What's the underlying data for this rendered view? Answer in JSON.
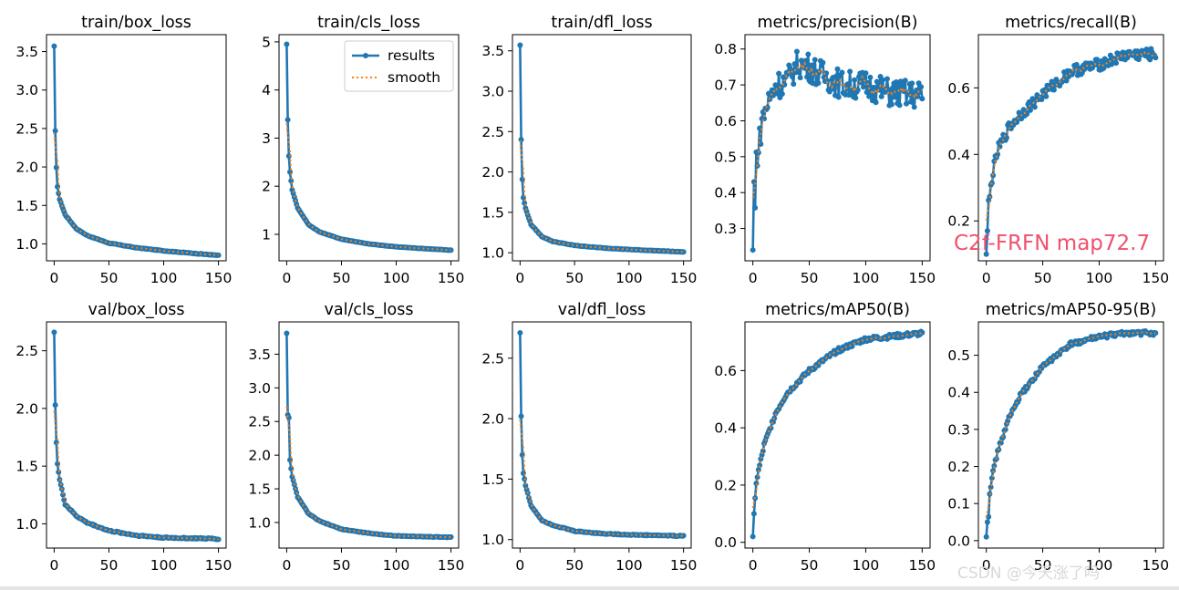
{
  "chart_data": [
    {
      "type": "line",
      "title": "train/box_loss",
      "xlim": [
        -7,
        157
      ],
      "ylim": [
        0.78,
        3.72
      ],
      "xticks": [
        "0",
        "50",
        "100",
        "150"
      ],
      "ytick_values": [
        1.0,
        1.5,
        2.0,
        2.5,
        3.0,
        3.5
      ],
      "ytick_labels": [
        "1.0",
        "1.5",
        "2.0",
        "2.5",
        "3.0",
        "3.5"
      ],
      "curve": {
        "start": 3.57,
        "second": 2.47,
        "kp": [
          [
            2,
            1.99
          ],
          [
            3,
            1.74
          ],
          [
            5,
            1.58
          ],
          [
            10,
            1.38
          ],
          [
            20,
            1.2
          ],
          [
            30,
            1.11
          ],
          [
            50,
            1.01
          ],
          [
            75,
            0.95
          ],
          [
            100,
            0.91
          ],
          [
            150,
            0.85
          ]
        ],
        "noise": 0.004
      },
      "series": [
        {
          "name": "results"
        },
        {
          "name": "smooth"
        }
      ]
    },
    {
      "type": "line",
      "title": "train/cls_loss",
      "xlim": [
        -7,
        157
      ],
      "ylim": [
        0.45,
        5.15
      ],
      "xticks": [
        "0",
        "50",
        "100",
        "150"
      ],
      "ytick_values": [
        1,
        2,
        3,
        4,
        5
      ],
      "ytick_labels": [
        "1",
        "2",
        "3",
        "4",
        "5"
      ],
      "legend": {
        "position": "upper right",
        "entries": [
          "results",
          "smooth"
        ]
      },
      "curve": {
        "start": 4.95,
        "second": 3.38,
        "kp": [
          [
            2,
            2.63
          ],
          [
            3,
            2.29
          ],
          [
            5,
            1.93
          ],
          [
            10,
            1.55
          ],
          [
            20,
            1.2
          ],
          [
            30,
            1.05
          ],
          [
            50,
            0.9
          ],
          [
            75,
            0.8
          ],
          [
            100,
            0.74
          ],
          [
            150,
            0.67
          ]
        ],
        "noise": 0.004
      },
      "series": [
        {
          "name": "results"
        },
        {
          "name": "smooth"
        }
      ]
    },
    {
      "type": "line",
      "title": "train/dfl_loss",
      "xlim": [
        -7,
        157
      ],
      "ylim": [
        0.9,
        3.7
      ],
      "xticks": [
        "0",
        "50",
        "100",
        "150"
      ],
      "ytick_values": [
        1.0,
        1.5,
        2.0,
        2.5,
        3.0,
        3.5
      ],
      "ytick_labels": [
        "1.0",
        "1.5",
        "2.0",
        "2.5",
        "3.0",
        "3.5"
      ],
      "curve": {
        "start": 3.57,
        "second": 2.4,
        "kp": [
          [
            2,
            1.91
          ],
          [
            3,
            1.68
          ],
          [
            5,
            1.55
          ],
          [
            10,
            1.35
          ],
          [
            20,
            1.2
          ],
          [
            30,
            1.14
          ],
          [
            50,
            1.09
          ],
          [
            75,
            1.06
          ],
          [
            100,
            1.04
          ],
          [
            150,
            1.01
          ]
        ],
        "noise": 0.003
      },
      "series": [
        {
          "name": "results"
        },
        {
          "name": "smooth"
        }
      ]
    },
    {
      "type": "line",
      "title": "metrics/precision(B)",
      "xlim": [
        -7,
        157
      ],
      "ylim": [
        0.21,
        0.84
      ],
      "xticks": [
        "0",
        "50",
        "100",
        "150"
      ],
      "ytick_values": [
        0.3,
        0.4,
        0.5,
        0.6,
        0.7,
        0.8
      ],
      "ytick_labels": [
        "0.3",
        "0.4",
        "0.5",
        "0.6",
        "0.7",
        "0.8"
      ],
      "curve": {
        "start": 0.24,
        "second": 0.43,
        "kp": [
          [
            2,
            0.35
          ],
          [
            3,
            0.5
          ],
          [
            5,
            0.52
          ],
          [
            8,
            0.6
          ],
          [
            12,
            0.64
          ],
          [
            20,
            0.7
          ],
          [
            30,
            0.71
          ],
          [
            40,
            0.76
          ],
          [
            50,
            0.75
          ],
          [
            60,
            0.73
          ],
          [
            80,
            0.7
          ],
          [
            100,
            0.7
          ],
          [
            120,
            0.68
          ],
          [
            150,
            0.67
          ]
        ],
        "noise": 0.04
      },
      "series": [
        {
          "name": "results"
        },
        {
          "name": "smooth"
        }
      ]
    },
    {
      "type": "line",
      "title": "metrics/recall(B)",
      "xlim": [
        -7,
        157
      ],
      "ylim": [
        0.08,
        0.76
      ],
      "xticks": [
        "0",
        "50",
        "100",
        "150"
      ],
      "ytick_values": [
        0.2,
        0.4,
        0.6
      ],
      "ytick_labels": [
        "0.2",
        "0.4",
        "0.6"
      ],
      "curve": {
        "start": 0.1,
        "second": 0.17,
        "kp": [
          [
            2,
            0.25
          ],
          [
            3,
            0.27
          ],
          [
            5,
            0.33
          ],
          [
            10,
            0.41
          ],
          [
            20,
            0.48
          ],
          [
            30,
            0.52
          ],
          [
            50,
            0.58
          ],
          [
            75,
            0.65
          ],
          [
            100,
            0.67
          ],
          [
            125,
            0.7
          ],
          [
            150,
            0.7
          ]
        ],
        "noise": 0.018
      },
      "series": [
        {
          "name": "results"
        },
        {
          "name": "smooth"
        }
      ],
      "annotation": "C2f-FRFN map72.7"
    },
    {
      "type": "line",
      "title": "val/box_loss",
      "xlim": [
        -7,
        157
      ],
      "ylim": [
        0.79,
        2.75
      ],
      "xticks": [
        "0",
        "50",
        "100",
        "150"
      ],
      "ytick_values": [
        1.0,
        1.5,
        2.0,
        2.5
      ],
      "ytick_labels": [
        "1.0",
        "1.5",
        "2.0",
        "2.5"
      ],
      "curve": {
        "start": 2.66,
        "second": 2.03,
        "kp": [
          [
            2,
            1.71
          ],
          [
            3,
            1.52
          ],
          [
            5,
            1.38
          ],
          [
            10,
            1.17
          ],
          [
            20,
            1.07
          ],
          [
            30,
            1.01
          ],
          [
            50,
            0.94
          ],
          [
            75,
            0.9
          ],
          [
            100,
            0.88
          ],
          [
            150,
            0.87
          ]
        ],
        "noise": 0.006
      },
      "series": [
        {
          "name": "results"
        },
        {
          "name": "smooth"
        }
      ]
    },
    {
      "type": "line",
      "title": "val/cls_loss",
      "xlim": [
        -7,
        157
      ],
      "ylim": [
        0.62,
        3.98
      ],
      "xticks": [
        "0",
        "50",
        "100",
        "150"
      ],
      "ytick_values": [
        1.0,
        1.5,
        2.0,
        2.5,
        3.0,
        3.5
      ],
      "ytick_labels": [
        "1.0",
        "1.5",
        "2.0",
        "2.5",
        "3.0",
        "3.5"
      ],
      "curve": {
        "start": 3.81,
        "second": 2.6,
        "kp": [
          [
            2,
            2.56
          ],
          [
            3,
            1.93
          ],
          [
            5,
            1.68
          ],
          [
            10,
            1.38
          ],
          [
            20,
            1.13
          ],
          [
            30,
            1.02
          ],
          [
            50,
            0.9
          ],
          [
            75,
            0.84
          ],
          [
            100,
            0.8
          ],
          [
            150,
            0.78
          ]
        ],
        "noise": 0.005
      },
      "series": [
        {
          "name": "results"
        },
        {
          "name": "smooth"
        }
      ]
    },
    {
      "type": "line",
      "title": "val/dfl_loss",
      "xlim": [
        -7,
        157
      ],
      "ylim": [
        0.93,
        2.8
      ],
      "xticks": [
        "0",
        "50",
        "100",
        "150"
      ],
      "ytick_values": [
        1.0,
        1.5,
        2.0,
        2.5
      ],
      "ytick_labels": [
        "1.0",
        "1.5",
        "2.0",
        "2.5"
      ],
      "curve": {
        "start": 2.71,
        "second": 2.02,
        "kp": [
          [
            2,
            1.7
          ],
          [
            3,
            1.55
          ],
          [
            5,
            1.45
          ],
          [
            10,
            1.28
          ],
          [
            20,
            1.16
          ],
          [
            30,
            1.12
          ],
          [
            50,
            1.07
          ],
          [
            75,
            1.05
          ],
          [
            100,
            1.04
          ],
          [
            150,
            1.03
          ]
        ],
        "noise": 0.004
      },
      "series": [
        {
          "name": "results"
        },
        {
          "name": "smooth"
        }
      ]
    },
    {
      "type": "line",
      "title": "metrics/mAP50(B)",
      "xlim": [
        -7,
        157
      ],
      "ylim": [
        -0.02,
        0.77
      ],
      "xticks": [
        "0",
        "50",
        "100",
        "150"
      ],
      "ytick_values": [
        0.0,
        0.2,
        0.4,
        0.6
      ],
      "ytick_labels": [
        "0.0",
        "0.2",
        "0.4",
        "0.6"
      ],
      "curve": {
        "start": 0.02,
        "second": 0.1,
        "kp": [
          [
            2,
            0.15
          ],
          [
            3,
            0.21
          ],
          [
            5,
            0.25
          ],
          [
            10,
            0.34
          ],
          [
            20,
            0.45
          ],
          [
            30,
            0.52
          ],
          [
            50,
            0.6
          ],
          [
            75,
            0.67
          ],
          [
            100,
            0.71
          ],
          [
            125,
            0.72
          ],
          [
            150,
            0.73
          ]
        ],
        "noise": 0.008
      },
      "series": [
        {
          "name": "results"
        },
        {
          "name": "smooth"
        }
      ]
    },
    {
      "type": "line",
      "title": "metrics/mAP50-95(B)",
      "xlim": [
        -7,
        157
      ],
      "ylim": [
        -0.02,
        0.59
      ],
      "xticks": [
        "0",
        "50",
        "100",
        "150"
      ],
      "ytick_values": [
        0.0,
        0.1,
        0.2,
        0.3,
        0.4,
        0.5
      ],
      "ytick_labels": [
        "0.0",
        "0.1",
        "0.2",
        "0.3",
        "0.4",
        "0.5"
      ],
      "curve": {
        "start": 0.01,
        "second": 0.05,
        "kp": [
          [
            2,
            0.07
          ],
          [
            3,
            0.13
          ],
          [
            5,
            0.17
          ],
          [
            10,
            0.24
          ],
          [
            20,
            0.33
          ],
          [
            30,
            0.39
          ],
          [
            50,
            0.47
          ],
          [
            75,
            0.53
          ],
          [
            100,
            0.55
          ],
          [
            125,
            0.56
          ],
          [
            150,
            0.56
          ]
        ],
        "noise": 0.006
      },
      "series": [
        {
          "name": "results"
        },
        {
          "name": "smooth"
        }
      ]
    }
  ],
  "colors": {
    "results": "#1f77b4",
    "smooth": "#ff7f0e",
    "annotation": "#f0506e",
    "watermark": "#d8d8d8"
  },
  "watermark": "CSDN @今天涨了吗"
}
